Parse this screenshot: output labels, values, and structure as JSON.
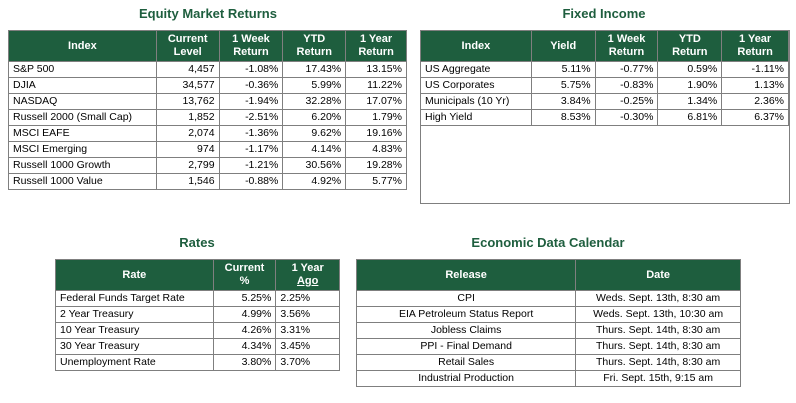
{
  "equity": {
    "title": "Equity Market Returns",
    "headers": {
      "index": "Index",
      "level_1": "Current",
      "level_2": "Level",
      "week_1": "1 Week",
      "week_2": "Return",
      "ytd_1": "YTD",
      "ytd_2": "Return",
      "year_1": "1 Year",
      "year_2": "Return"
    },
    "rows": [
      [
        "S&P 500",
        "4,457",
        "-1.08%",
        "17.43%",
        "13.15%"
      ],
      [
        "DJIA",
        "34,577",
        "-0.36%",
        "5.99%",
        "11.22%"
      ],
      [
        "NASDAQ",
        "13,762",
        "-1.94%",
        "32.28%",
        "17.07%"
      ],
      [
        "Russell 2000 (Small Cap)",
        "1,852",
        "-2.51%",
        "6.20%",
        "1.79%"
      ],
      [
        "MSCI EAFE",
        "2,074",
        "-1.36%",
        "9.62%",
        "19.16%"
      ],
      [
        "MSCI Emerging",
        "974",
        "-1.17%",
        "4.14%",
        "4.83%"
      ],
      [
        "Russell 1000 Growth",
        "2,799",
        "-1.21%",
        "30.56%",
        "19.28%"
      ],
      [
        "Russell 1000 Value",
        "1,546",
        "-0.88%",
        "4.92%",
        "5.77%"
      ]
    ]
  },
  "fixed": {
    "title": "Fixed Income",
    "headers": {
      "index": "Index",
      "yield": "Yield",
      "week_1": "1 Week",
      "week_2": "Return",
      "ytd_1": "YTD",
      "ytd_2": "Return",
      "year_1": "1 Year",
      "year_2": "Return"
    },
    "rows": [
      [
        "US Aggregate",
        "5.11%",
        "-0.77%",
        "0.59%",
        "-1.11%"
      ],
      [
        "US Corporates",
        "5.75%",
        "-0.83%",
        "1.90%",
        "1.13%"
      ],
      [
        "Municipals (10 Yr)",
        "3.84%",
        "-0.25%",
        "1.34%",
        "2.36%"
      ],
      [
        "High Yield",
        "8.53%",
        "-0.30%",
        "6.81%",
        "6.37%"
      ]
    ]
  },
  "rates": {
    "title": "Rates",
    "headers": {
      "rate": "Rate",
      "current_1": "Current",
      "current_2": "%",
      "ago_1": "1 Year",
      "ago_2": "Ago"
    },
    "rows": [
      [
        "Federal Funds Target Rate",
        "5.25%",
        "2.25%"
      ],
      [
        "2 Year Treasury",
        "4.99%",
        "3.56%"
      ],
      [
        "10 Year Treasury",
        "4.26%",
        "3.31%"
      ],
      [
        "30 Year Treasury",
        "4.34%",
        "3.45%"
      ],
      [
        "Unemployment Rate",
        "3.80%",
        "3.70%"
      ]
    ]
  },
  "calendar": {
    "title": "Economic Data Calendar",
    "headers": {
      "release": "Release",
      "date": "Date"
    },
    "rows": [
      [
        "CPI",
        "Weds. Sept. 13th, 8:30 am"
      ],
      [
        "EIA Petroleum Status Report",
        "Weds. Sept. 13th, 10:30 am"
      ],
      [
        "Jobless Claims",
        "Thurs. Sept. 14th, 8:30 am"
      ],
      [
        "PPI - Final Demand",
        "Thurs. Sept. 14th, 8:30 am"
      ],
      [
        "Retail Sales",
        "Thurs. Sept. 14th, 8:30 am"
      ],
      [
        "Industrial Production",
        "Fri. Sept. 15th, 9:15 am"
      ]
    ]
  },
  "colors": {
    "header_bg": "#1e5e3e",
    "title": "#1e5e3e",
    "border": "#7f7f7f"
  }
}
